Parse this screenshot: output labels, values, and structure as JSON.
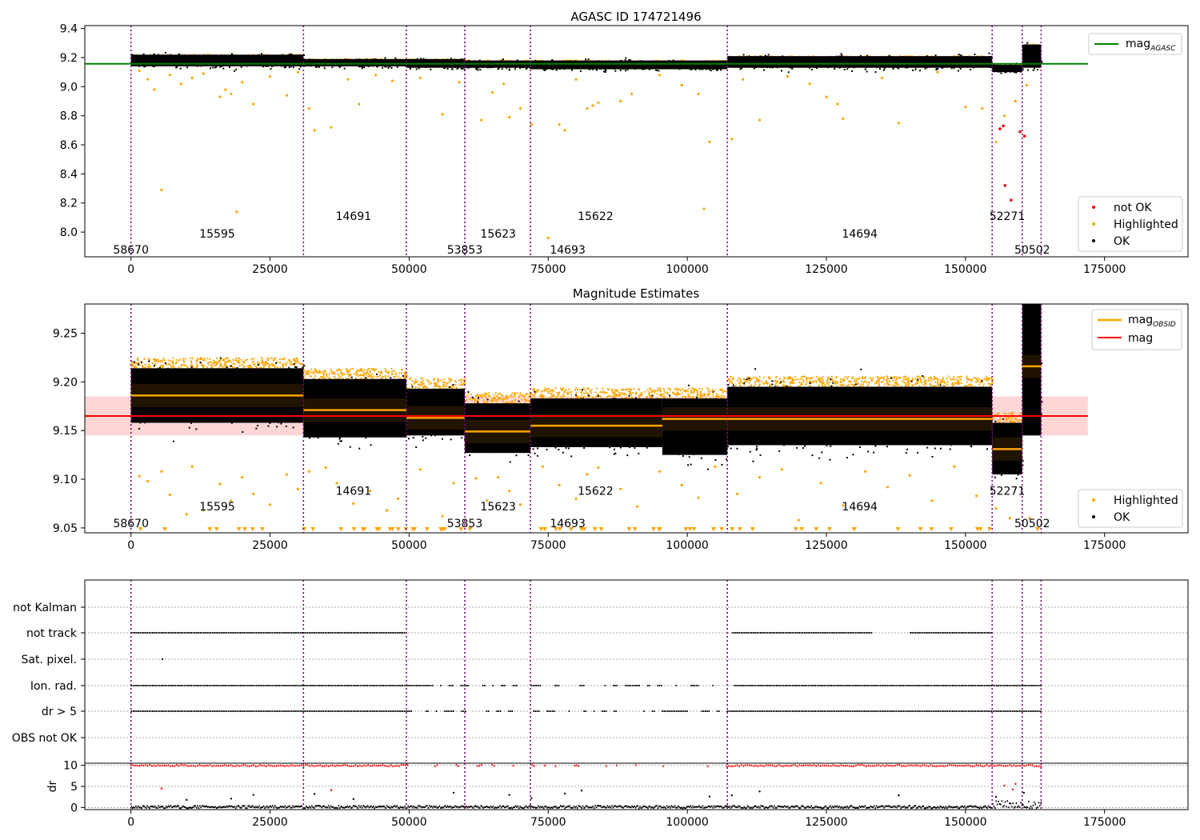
{
  "chart_data": [
    {
      "type": "scatter",
      "title": "AGASC ID 174721496",
      "xlim": [
        -8300,
        190000
      ],
      "ylim": [
        7.83,
        9.42
      ],
      "x_ticks": [
        0,
        25000,
        50000,
        75000,
        100000,
        125000,
        150000,
        175000
      ],
      "x_tick_labels": [
        "0",
        "25000",
        "50000",
        "75000",
        "100000",
        "125000",
        "150000",
        "175000"
      ],
      "y_ticks": [
        8.0,
        8.2,
        8.4,
        8.6,
        8.8,
        9.0,
        9.2,
        9.4
      ],
      "y_tick_labels": [
        "8.0",
        "8.2",
        "8.4",
        "8.6",
        "8.8",
        "9.0",
        "9.2",
        "9.4"
      ],
      "obs_boundaries": [
        0,
        31000,
        49500,
        60000,
        71800,
        107200,
        154800,
        160200,
        163600
      ],
      "obs_labels": [
        {
          "text": "58670",
          "x": 0,
          "y": 7.88
        },
        {
          "text": "15595",
          "x": 15500,
          "y": 7.99
        },
        {
          "text": "14691",
          "x": 40000,
          "y": 8.11
        },
        {
          "text": "53853",
          "x": 60000,
          "y": 7.88
        },
        {
          "text": "15623",
          "x": 66000,
          "y": 7.99
        },
        {
          "text": "14693",
          "x": 78500,
          "y": 7.88
        },
        {
          "text": "15622",
          "x": 83500,
          "y": 8.11
        },
        {
          "text": "14694",
          "x": 131000,
          "y": 7.99
        },
        {
          "text": "52271",
          "x": 157500,
          "y": 8.11
        },
        {
          "text": "50502",
          "x": 162000,
          "y": 7.88
        }
      ],
      "reference_line": {
        "name": "mag_AGASC",
        "value": 9.157,
        "x_range": [
          -8300,
          172000
        ],
        "color": "#008000"
      },
      "band_segments": [
        {
          "x0": 0,
          "x1": 31000,
          "lo": 9.14,
          "hi": 9.22,
          "center": 9.18
        },
        {
          "x0": 31000,
          "x1": 49500,
          "lo": 9.14,
          "hi": 9.19,
          "center": 9.17
        },
        {
          "x0": 49500,
          "x1": 60000,
          "lo": 9.13,
          "hi": 9.19,
          "center": 9.165
        },
        {
          "x0": 60000,
          "x1": 71800,
          "lo": 9.13,
          "hi": 9.18,
          "center": 9.155
        },
        {
          "x0": 71800,
          "x1": 107200,
          "lo": 9.12,
          "hi": 9.18,
          "center": 9.155
        },
        {
          "x0": 107200,
          "x1": 154800,
          "lo": 9.13,
          "hi": 9.21,
          "center": 9.17
        },
        {
          "x0": 154800,
          "x1": 160200,
          "lo": 9.1,
          "hi": 9.15,
          "center": 9.125
        },
        {
          "x0": 160200,
          "x1": 163600,
          "lo": 9.13,
          "hi": 9.29,
          "center": 9.22
        }
      ],
      "series": [
        {
          "name": "not OK",
          "color": "#ff0000",
          "points": [
            [
              156200,
              8.71
            ],
            [
              156800,
              8.73
            ],
            [
              157100,
              8.32
            ],
            [
              158200,
              8.22
            ],
            [
              159800,
              8.69
            ],
            [
              160600,
              8.66
            ]
          ]
        },
        {
          "name": "Highlighted",
          "color": "#ffa500",
          "points": [
            [
              1500,
              9.11
            ],
            [
              3000,
              9.05
            ],
            [
              4200,
              8.98
            ],
            [
              5500,
              8.29
            ],
            [
              7000,
              9.08
            ],
            [
              9000,
              9.02
            ],
            [
              11000,
              9.06
            ],
            [
              13000,
              9.09
            ],
            [
              16000,
              8.93
            ],
            [
              17000,
              8.98
            ],
            [
              18000,
              8.95
            ],
            [
              19000,
              8.14
            ],
            [
              20000,
              9.03
            ],
            [
              22000,
              8.88
            ],
            [
              25000,
              9.07
            ],
            [
              28000,
              8.94
            ],
            [
              30000,
              9.1
            ],
            [
              32000,
              8.85
            ],
            [
              33000,
              8.7
            ],
            [
              36000,
              8.72
            ],
            [
              39000,
              9.05
            ],
            [
              41000,
              8.88
            ],
            [
              44000,
              9.08
            ],
            [
              47000,
              9.04
            ],
            [
              52000,
              9.06
            ],
            [
              56000,
              8.81
            ],
            [
              59000,
              9.03
            ],
            [
              63000,
              8.77
            ],
            [
              65000,
              8.96
            ],
            [
              67000,
              9.02
            ],
            [
              68000,
              8.79
            ],
            [
              70000,
              8.85
            ],
            [
              72000,
              8.74
            ],
            [
              75000,
              7.96
            ],
            [
              77000,
              8.74
            ],
            [
              78000,
              8.7
            ],
            [
              80000,
              9.05
            ],
            [
              82000,
              8.85
            ],
            [
              83000,
              8.87
            ],
            [
              84000,
              8.89
            ],
            [
              88000,
              8.9
            ],
            [
              90000,
              8.95
            ],
            [
              95000,
              9.08
            ],
            [
              99000,
              9.01
            ],
            [
              102000,
              8.95
            ],
            [
              103000,
              8.16
            ],
            [
              104000,
              8.62
            ],
            [
              108000,
              8.64
            ],
            [
              110000,
              9.05
            ],
            [
              113000,
              8.77
            ],
            [
              118000,
              9.07
            ],
            [
              122000,
              9.02
            ],
            [
              125000,
              8.93
            ],
            [
              127000,
              8.88
            ],
            [
              128000,
              8.78
            ],
            [
              135000,
              9.06
            ],
            [
              138000,
              8.75
            ],
            [
              145000,
              9.1
            ],
            [
              150000,
              8.86
            ],
            [
              153000,
              8.85
            ],
            [
              155500,
              8.62
            ],
            [
              157000,
              8.8
            ],
            [
              159000,
              8.9
            ],
            [
              161000,
              9.01
            ]
          ]
        }
      ],
      "legend": {
        "top": [
          {
            "label": "mag",
            "sub": "AGASC",
            "color": "#008000",
            "kind": "line"
          }
        ],
        "bottom": [
          {
            "label": "not OK",
            "color": "#ff0000"
          },
          {
            "label": "Highlighted",
            "color": "#ffa500"
          },
          {
            "label": "OK",
            "color": "#000000"
          }
        ],
        "placement": "upper-right / lower-right"
      }
    },
    {
      "type": "scatter",
      "title": "Magnitude Estimates",
      "xlim": [
        -8300,
        190000
      ],
      "ylim": [
        9.045,
        9.28
      ],
      "x_ticks": [
        0,
        25000,
        50000,
        75000,
        100000,
        125000,
        150000,
        175000
      ],
      "x_tick_labels": [
        "0",
        "25000",
        "50000",
        "75000",
        "100000",
        "125000",
        "150000",
        "175000"
      ],
      "y_ticks": [
        9.05,
        9.1,
        9.15,
        9.2,
        9.25
      ],
      "y_tick_labels": [
        "9.05",
        "9.10",
        "9.15",
        "9.20",
        "9.25"
      ],
      "obs_boundaries": [
        0,
        31000,
        49500,
        60000,
        71800,
        107200,
        154800,
        160200,
        163600
      ],
      "obs_labels": [
        {
          "text": "58670",
          "x": 0,
          "y": 9.055
        },
        {
          "text": "15595",
          "x": 15500,
          "y": 9.072
        },
        {
          "text": "14691",
          "x": 40000,
          "y": 9.088
        },
        {
          "text": "53853",
          "x": 60000,
          "y": 9.055
        },
        {
          "text": "15623",
          "x": 66000,
          "y": 9.072
        },
        {
          "text": "14693",
          "x": 78500,
          "y": 9.055
        },
        {
          "text": "15622",
          "x": 83500,
          "y": 9.088
        },
        {
          "text": "14694",
          "x": 131000,
          "y": 9.072
        },
        {
          "text": "52271",
          "x": 157500,
          "y": 9.088
        },
        {
          "text": "50502",
          "x": 162000,
          "y": 9.055
        }
      ],
      "mag_line": {
        "name": "mag",
        "value": 9.165,
        "band": [
          9.145,
          9.185
        ],
        "x_range": [
          -8300,
          172000
        ],
        "color": "#ff0000",
        "band_color": "#ffd6d6"
      },
      "obsid_mag": [
        {
          "x0": 0,
          "x1": 31000,
          "value": 9.186,
          "lo": 9.158,
          "hi": 9.214
        },
        {
          "x0": 31000,
          "x1": 49500,
          "value": 9.171,
          "lo": 9.143,
          "hi": 9.203
        },
        {
          "x0": 49500,
          "x1": 60000,
          "value": 9.163,
          "lo": 9.145,
          "hi": 9.193
        },
        {
          "x0": 60000,
          "x1": 71800,
          "value": 9.149,
          "lo": 9.127,
          "hi": 9.178
        },
        {
          "x0": 71800,
          "x1": 95500,
          "value": 9.155,
          "lo": 9.133,
          "hi": 9.183
        },
        {
          "x0": 95500,
          "x1": 107200,
          "value": 9.162,
          "lo": 9.125,
          "hi": 9.183
        },
        {
          "x0": 107200,
          "x1": 154800,
          "value": 9.162,
          "lo": 9.135,
          "hi": 9.195
        },
        {
          "x0": 154800,
          "x1": 160200,
          "value": 9.131,
          "lo": 9.105,
          "hi": 9.158
        },
        {
          "x0": 160200,
          "x1": 163600,
          "value": 9.216,
          "lo": 9.145,
          "hi": 9.28
        }
      ],
      "series": [
        {
          "name": "Highlighted",
          "color": "#ffa500",
          "points": [
            [
              1500,
              9.103
            ],
            [
              3000,
              9.098
            ],
            [
              5500,
              9.108
            ],
            [
              7000,
              9.084
            ],
            [
              10000,
              9.064
            ],
            [
              11000,
              9.113
            ],
            [
              13000,
              9.068
            ],
            [
              16000,
              9.095
            ],
            [
              18000,
              9.078
            ],
            [
              20000,
              9.102
            ],
            [
              22000,
              9.085
            ],
            [
              25000,
              9.074
            ],
            [
              28000,
              9.105
            ],
            [
              30000,
              9.09
            ],
            [
              32000,
              9.108
            ],
            [
              35000,
              9.112
            ],
            [
              37000,
              9.096
            ],
            [
              40000,
              9.075
            ],
            [
              43000,
              9.088
            ],
            [
              46000,
              9.068
            ],
            [
              48000,
              9.08
            ],
            [
              52000,
              9.11
            ],
            [
              56000,
              9.062
            ],
            [
              58000,
              9.096
            ],
            [
              62000,
              9.101
            ],
            [
              64000,
              9.078
            ],
            [
              66000,
              9.102
            ],
            [
              68000,
              9.088
            ],
            [
              70000,
              9.074
            ],
            [
              74000,
              9.113
            ],
            [
              77000,
              9.094
            ],
            [
              80000,
              9.08
            ],
            [
              82000,
              9.105
            ],
            [
              84000,
              9.112
            ],
            [
              88000,
              9.09
            ],
            [
              91000,
              9.072
            ],
            [
              95000,
              9.108
            ],
            [
              99000,
              9.094
            ],
            [
              102000,
              9.081
            ],
            [
              105000,
              9.113
            ],
            [
              109000,
              9.085
            ],
            [
              113000,
              9.102
            ],
            [
              117000,
              9.11
            ],
            [
              120000,
              9.058
            ],
            [
              124000,
              9.096
            ],
            [
              128000,
              9.073
            ],
            [
              132000,
              9.108
            ],
            [
              136000,
              9.092
            ],
            [
              140000,
              9.104
            ],
            [
              144000,
              9.078
            ],
            [
              148000,
              9.113
            ],
            [
              152000,
              9.083
            ],
            [
              155500,
              9.07
            ],
            [
              158000,
              9.06
            ],
            [
              161500,
              9.06
            ]
          ]
        }
      ],
      "legend": {
        "top": [
          {
            "label": "mag",
            "sub": "OBSID",
            "color": "#ffa500",
            "kind": "line"
          },
          {
            "label": "mag",
            "sub": "",
            "color": "#ff0000",
            "kind": "line"
          }
        ],
        "bottom": [
          {
            "label": "Highlighted",
            "color": "#ffa500"
          },
          {
            "label": "OK",
            "color": "#000000"
          }
        ],
        "placement": "upper-right / lower-right"
      }
    },
    {
      "type": "scatter",
      "xlim": [
        -8300,
        190000
      ],
      "x_ticks": [
        0,
        25000,
        50000,
        75000,
        100000,
        125000,
        150000,
        175000
      ],
      "x_tick_labels": [
        "0",
        "25000",
        "50000",
        "75000",
        "100000",
        "125000",
        "150000",
        "175000"
      ],
      "obs_boundaries": [
        0,
        31000,
        49500,
        60000,
        71800,
        107200,
        154800,
        160200,
        163600
      ],
      "flag_categories": [
        "not Kalman",
        "not track",
        "Sat. pixel.",
        "Ion. rad.",
        "dr > 5",
        "OBS not OK"
      ],
      "flag_ranges": {
        "not track": [
          [
            0,
            49500
          ],
          [
            108000,
            133000
          ],
          [
            140000,
            154800
          ]
        ],
        "Sat. pixel.": [
          [
            5500,
            5500
          ]
        ],
        "Ion. rad.": [
          [
            0,
            163600
          ]
        ],
        "dr > 5": [
          [
            0,
            163600
          ]
        ],
        "OBS not OK": []
      },
      "dr_panel": {
        "ylabel": "dr",
        "ylim": [
          -0.5,
          10.5
        ],
        "y_ticks": [
          0,
          5,
          10
        ],
        "y_tick_labels": [
          "0",
          "5",
          "10"
        ],
        "clipped_value": 10,
        "outliers": [
          [
            5500,
            4.5
          ],
          [
            10000,
            1.8
          ],
          [
            18000,
            2.1
          ],
          [
            22000,
            3.0
          ],
          [
            33000,
            3.2
          ],
          [
            36000,
            4.1
          ],
          [
            40000,
            2.0
          ],
          [
            58000,
            3.5
          ],
          [
            68000,
            3.0
          ],
          [
            72000,
            2.2
          ],
          [
            78000,
            3.3
          ],
          [
            81000,
            4.0
          ],
          [
            104000,
            2.6
          ],
          [
            108000,
            2.9
          ],
          [
            113000,
            3.8
          ],
          [
            138000,
            2.9
          ],
          [
            155500,
            2.5
          ],
          [
            157000,
            5.2
          ],
          [
            158500,
            4.3
          ],
          [
            159000,
            5.6
          ],
          [
            160500,
            3.5
          ]
        ]
      }
    }
  ]
}
